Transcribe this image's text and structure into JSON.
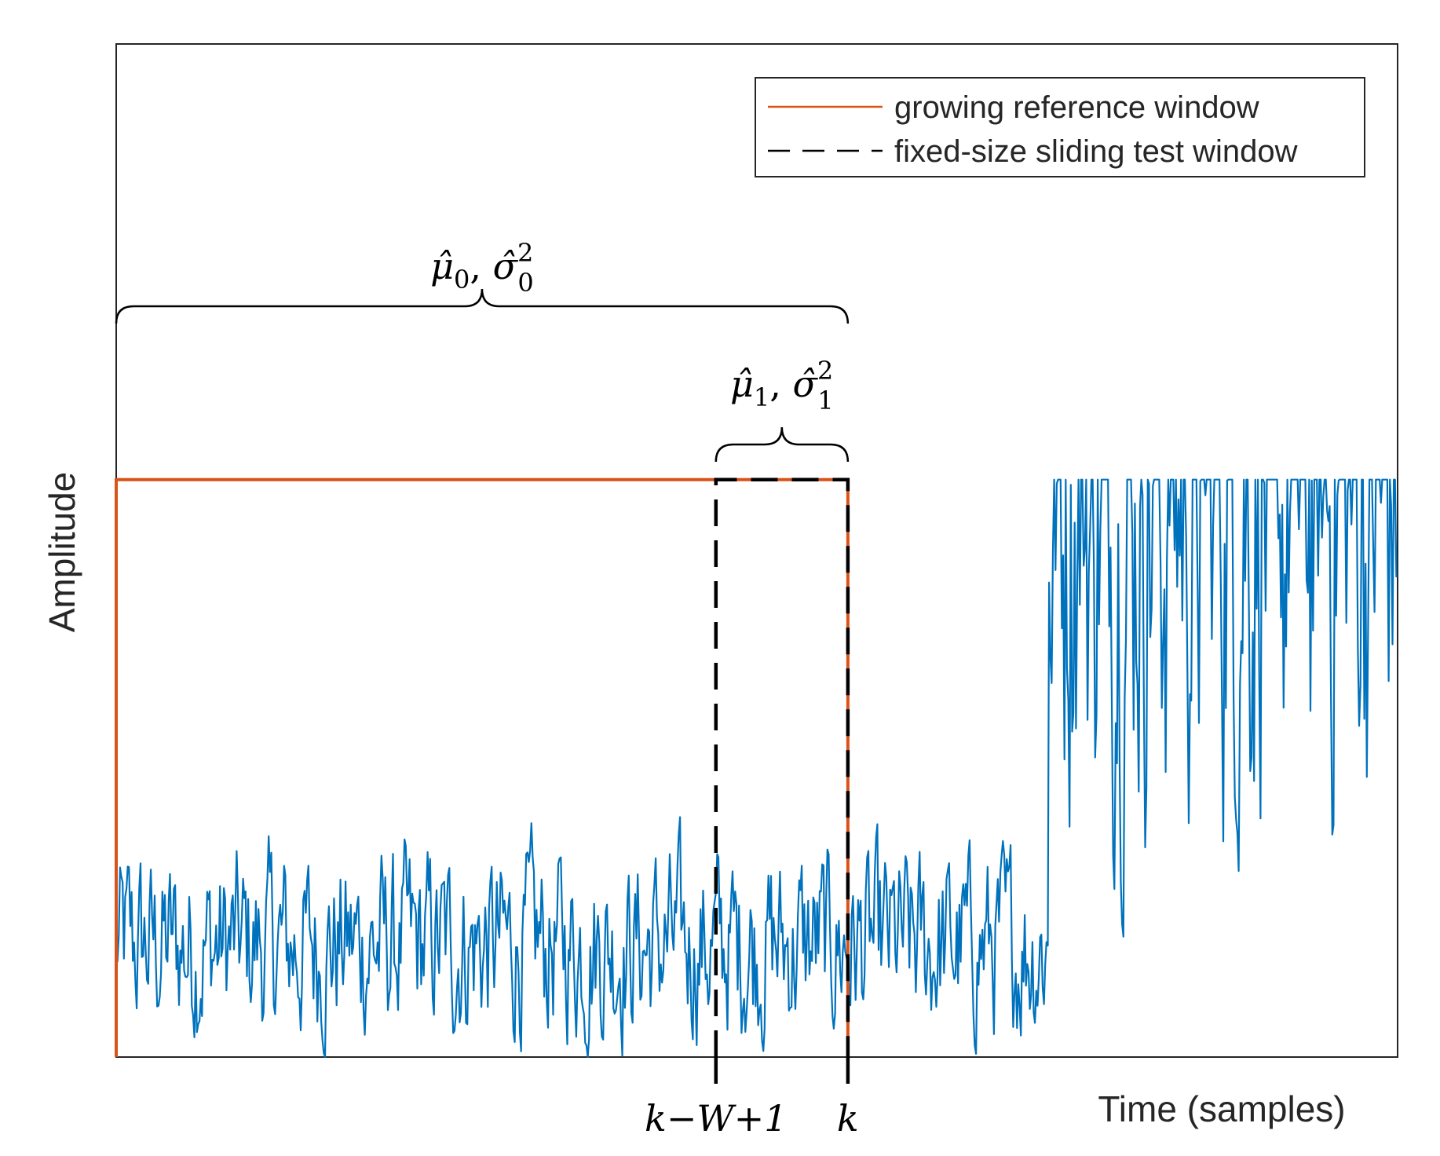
{
  "chart_data": {
    "type": "line",
    "title": "",
    "xlabel": "Time (samples)",
    "ylabel": "Amplitude",
    "xlim": [
      0,
      1000
    ],
    "ylim": [
      0,
      1
    ],
    "grid": false,
    "legend_position": "top-right",
    "legend": [
      {
        "label": "growing reference window",
        "style": "solid",
        "color": "#D95319"
      },
      {
        "label": "fixed-size sliding test window",
        "style": "dashed",
        "color": "#000000"
      }
    ],
    "signal": {
      "name": "signal",
      "color": "#0072BD",
      "n_samples": 1000,
      "change_point": 728,
      "segment_before": {
        "mean": 0.11,
        "spread": 0.16
      },
      "segment_after": {
        "mean": 0.56,
        "spread": 0.55
      }
    },
    "reference_window": {
      "start": 0,
      "end": 571,
      "level": 0.57,
      "color": "#D95319",
      "estimate_label": "μ̂0, σ̂0²"
    },
    "test_window": {
      "start": 468,
      "end": 571,
      "level": 0.57,
      "color": "#000000",
      "estimate_label": "μ̂1, σ̂1²"
    },
    "tick_labels": [
      {
        "x": 468,
        "label": "k−W+1"
      },
      {
        "x": 571,
        "label": "k"
      }
    ]
  },
  "colors": {
    "signal": "#0072BD",
    "reference": "#D95319",
    "test": "#000000",
    "axes": "#262626"
  }
}
